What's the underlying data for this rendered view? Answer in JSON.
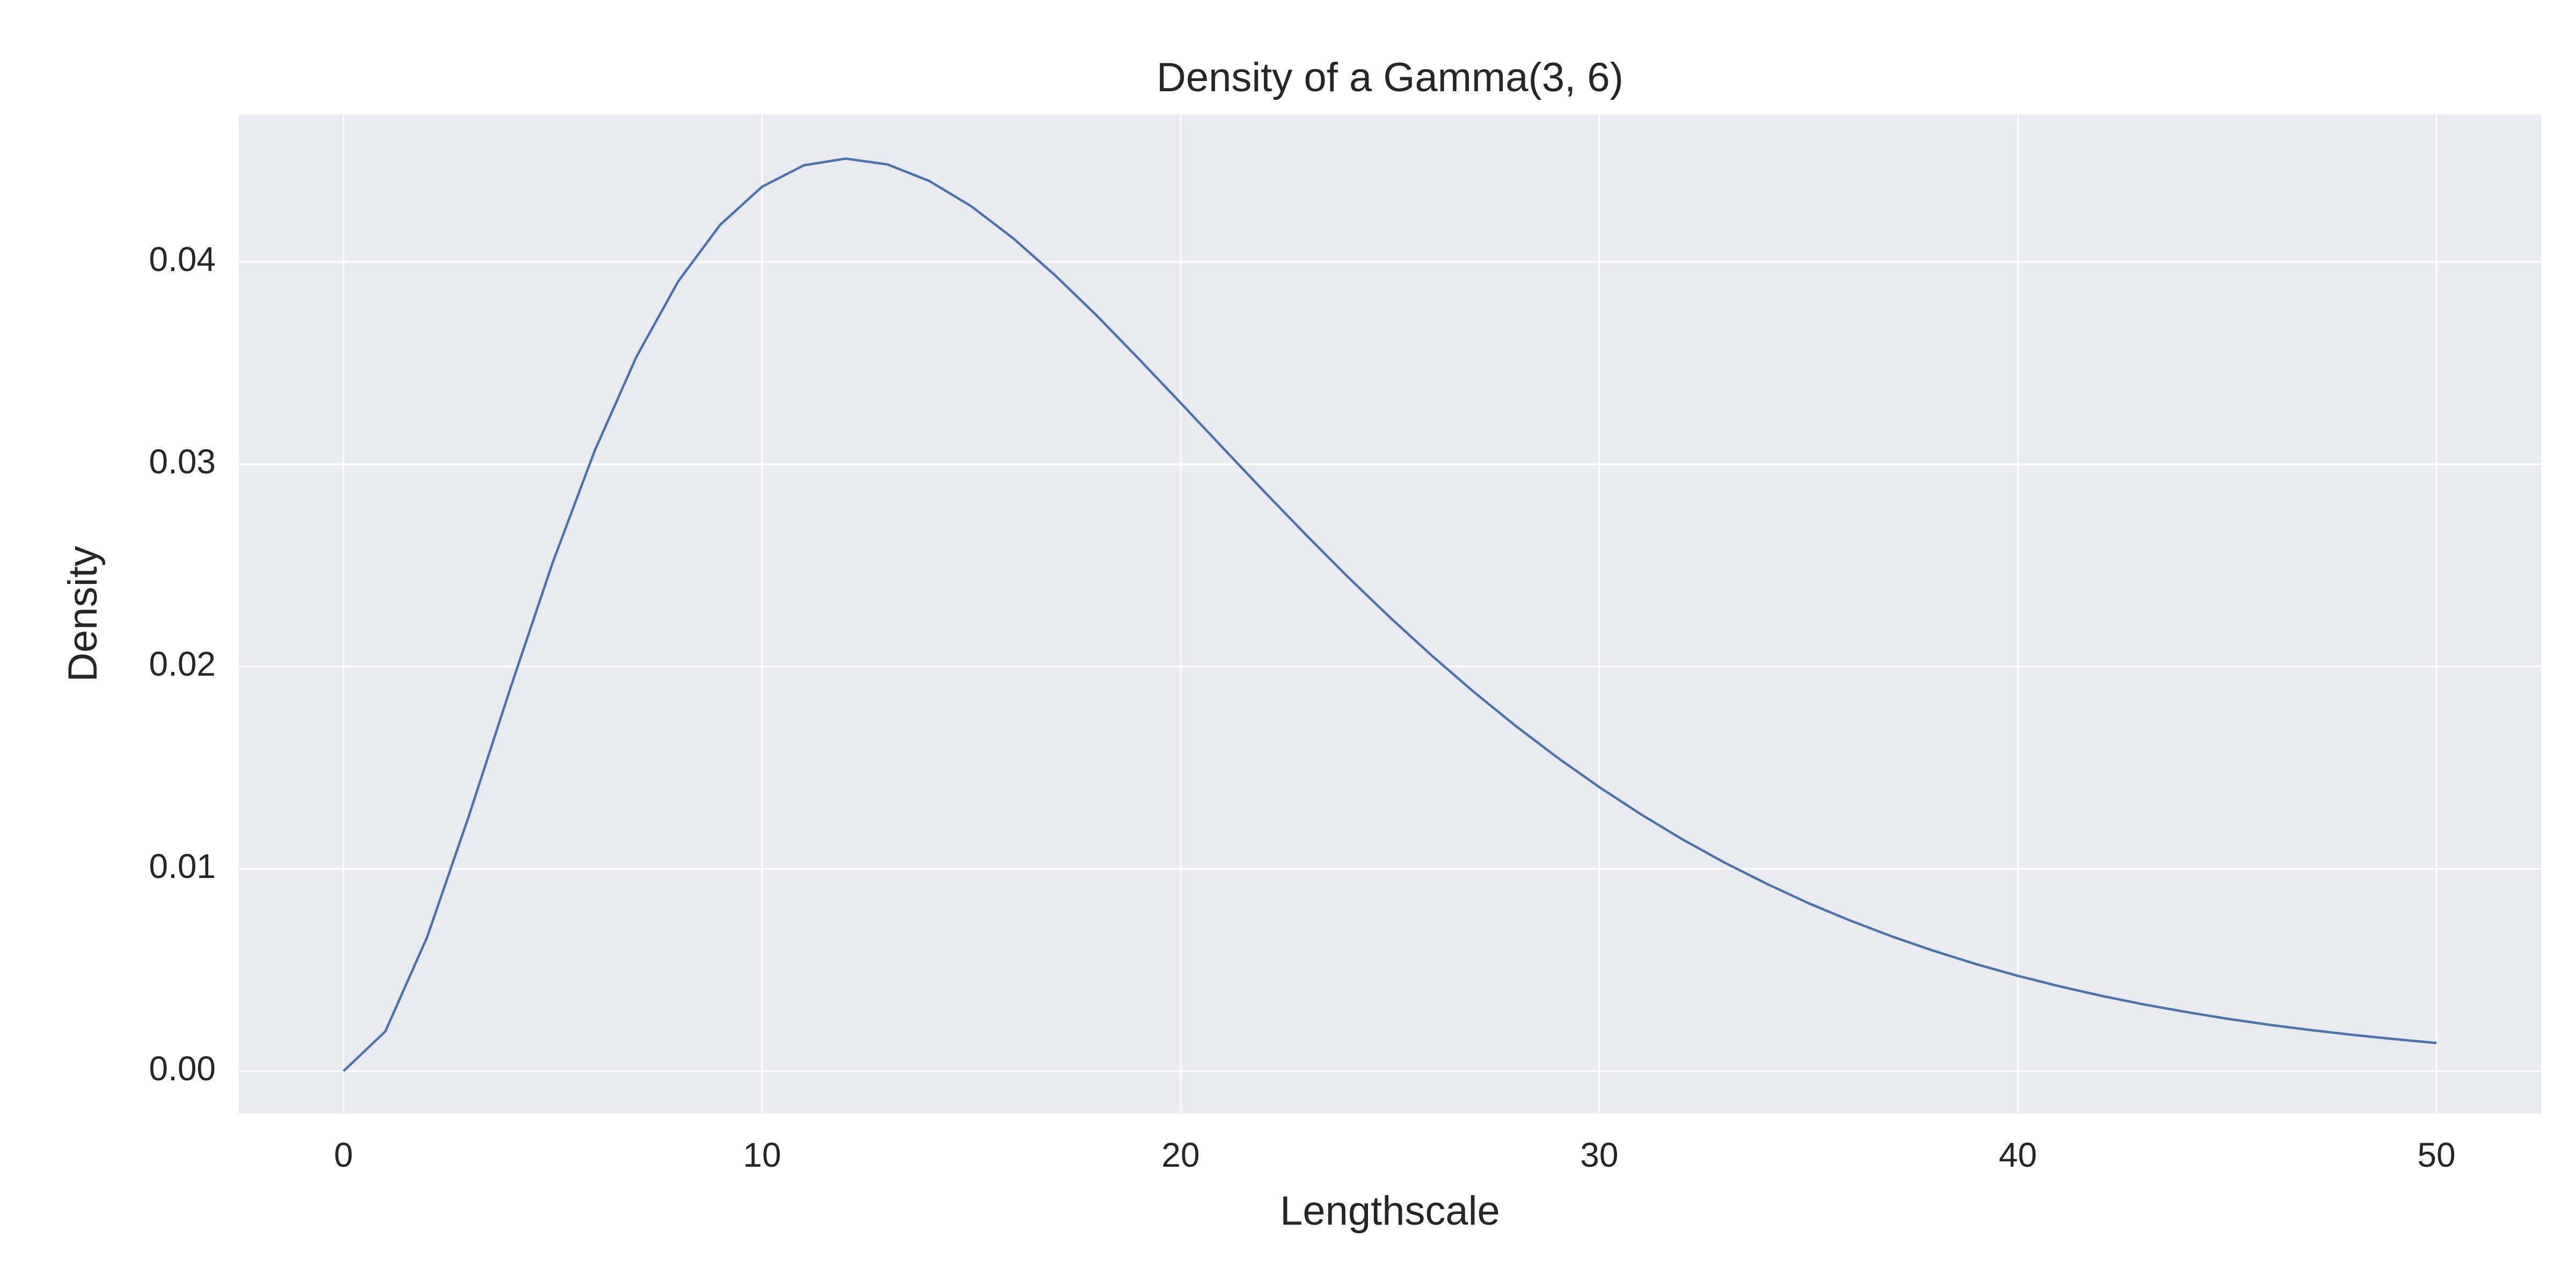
{
  "chart_data": {
    "type": "line",
    "title": "Density of a Gamma(3, 6)",
    "x_label": "Lengthscale",
    "y_label": "Density",
    "x": [
      0,
      1,
      2,
      3,
      4,
      5,
      6,
      7,
      8,
      9,
      10,
      11,
      12,
      13,
      14,
      15,
      16,
      17,
      18,
      19,
      20,
      21,
      22,
      23,
      24,
      25,
      26,
      27,
      28,
      29,
      30,
      31,
      32,
      33,
      34,
      35,
      36,
      37,
      38,
      39,
      40,
      41,
      42,
      43,
      44,
      45,
      46,
      47,
      48,
      49,
      50
    ],
    "series": [
      {
        "color": "#4c72b0",
        "values": [
          0,
          0.00196,
          0.00663,
          0.01264,
          0.01901,
          0.02515,
          0.03066,
          0.03532,
          0.03905,
          0.04184,
          0.04372,
          0.04478,
          0.04511,
          0.04482,
          0.044,
          0.04275,
          0.04117,
          0.03934,
          0.03734,
          0.03521,
          0.03303,
          0.03083,
          0.02864,
          0.0265,
          0.02442,
          0.02243,
          0.02054,
          0.01875,
          0.01707,
          0.0155,
          0.01404,
          0.01269,
          0.01144,
          0.0103,
          0.00926,
          0.0083,
          0.00744,
          0.00665,
          0.00594,
          0.00529,
          0.00471,
          0.00419,
          0.00372,
          0.0033,
          0.00293,
          0.00259,
          0.00229,
          0.00203,
          0.00179,
          0.00158,
          0.00139
        ]
      }
    ],
    "xlim": [
      -2.5,
      52.5
    ],
    "xticks": [
      0,
      10,
      20,
      30,
      40,
      50
    ],
    "ylim": [
      -0.0021,
      0.0473
    ],
    "yticks": [
      {
        "value": 0,
        "label": "0.00"
      },
      {
        "value": 0.01,
        "label": "0.01"
      },
      {
        "value": 0.02,
        "label": "0.02"
      },
      {
        "value": 0.03,
        "label": "0.03"
      },
      {
        "value": 0.04,
        "label": "0.04"
      }
    ],
    "grid": true
  }
}
